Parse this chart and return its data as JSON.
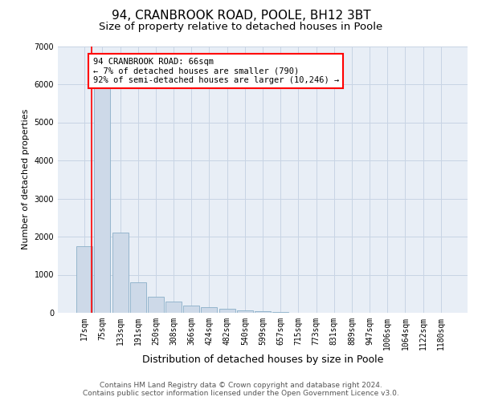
{
  "title": "94, CRANBROOK ROAD, POOLE, BH12 3BT",
  "subtitle": "Size of property relative to detached houses in Poole",
  "xlabel": "Distribution of detached houses by size in Poole",
  "ylabel": "Number of detached properties",
  "bar_labels": [
    "17sqm",
    "75sqm",
    "133sqm",
    "191sqm",
    "250sqm",
    "308sqm",
    "366sqm",
    "424sqm",
    "482sqm",
    "540sqm",
    "599sqm",
    "657sqm",
    "715sqm",
    "773sqm",
    "831sqm",
    "889sqm",
    "947sqm",
    "1006sqm",
    "1064sqm",
    "1122sqm",
    "1180sqm"
  ],
  "bar_values": [
    1750,
    5900,
    2100,
    800,
    430,
    300,
    200,
    150,
    110,
    65,
    45,
    20,
    8,
    4,
    2,
    2,
    1,
    1,
    1,
    1,
    1
  ],
  "bar_color": "#cdd9e8",
  "bar_edgecolor": "#8bafc8",
  "redline_x": 0.42,
  "annotation_text": "94 CRANBROOK ROAD: 66sqm\n← 7% of detached houses are smaller (790)\n92% of semi-detached houses are larger (10,246) →",
  "annotation_box_color": "white",
  "annotation_box_edgecolor": "red",
  "redline_color": "red",
  "ylim": [
    0,
    7000
  ],
  "yticks": [
    0,
    1000,
    2000,
    3000,
    4000,
    5000,
    6000,
    7000
  ],
  "grid_color": "#c8d4e4",
  "plot_bg_color": "#e8eef6",
  "footer_line1": "Contains HM Land Registry data © Crown copyright and database right 2024.",
  "footer_line2": "Contains public sector information licensed under the Open Government Licence v3.0.",
  "title_fontsize": 11,
  "subtitle_fontsize": 9.5,
  "xlabel_fontsize": 9,
  "ylabel_fontsize": 8,
  "tick_fontsize": 7,
  "footer_fontsize": 6.5,
  "annot_fontsize": 7.5
}
